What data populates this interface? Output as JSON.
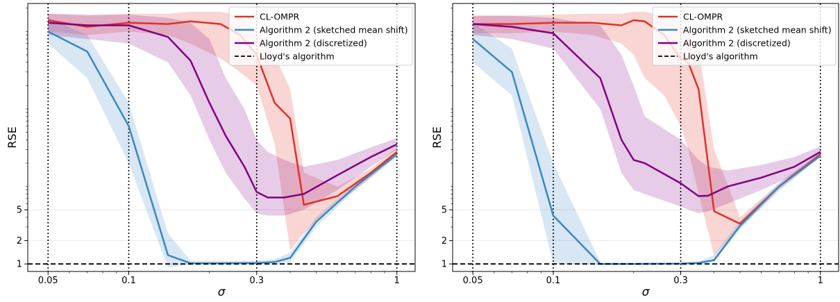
{
  "chart_data": [
    {
      "type": "line",
      "xlabel": "σ",
      "ylabel": "RSE",
      "xscale": "log",
      "yscale": "log",
      "xlim": [
        0.042,
        1.17
      ],
      "ylim": [
        0.8,
        2300
      ],
      "xticks": [
        {
          "v": 0.05,
          "label": "0.05"
        },
        {
          "v": 0.1,
          "label": "0.1"
        },
        {
          "v": 0.3,
          "label": "0.3"
        },
        {
          "v": 1,
          "label": "1"
        }
      ],
      "yticks": [
        {
          "v": 1,
          "label": "1"
        },
        {
          "v": 2,
          "label": "2"
        },
        {
          "v": 5,
          "label": "5"
        }
      ],
      "vlines": [
        0.05,
        0.1,
        0.3,
        1
      ],
      "hline": 1,
      "grid": "y-major dotted",
      "legend_position": "top-right",
      "legend": [
        "CL-OMPR",
        "Algorithm 2 (sketched mean shift)",
        "Algorithm 2 (discretized)",
        "Lloyd's algorithm"
      ],
      "series": [
        {
          "name": "CL-OMPR",
          "color": "#e03127",
          "x": [
            0.05,
            0.07,
            0.1,
            0.14,
            0.17,
            0.22,
            0.26,
            0.3,
            0.35,
            0.4,
            0.45,
            0.6,
            0.8,
            1.0
          ],
          "y": [
            1400,
            1150,
            1300,
            1250,
            1350,
            1250,
            900,
            500,
            120,
            75,
            5.8,
            7.5,
            15,
            28
          ],
          "lo": [
            1000,
            900,
            1000,
            900,
            700,
            450,
            300,
            200,
            35,
            1.5,
            2.5,
            6,
            13,
            25
          ],
          "hi": [
            1700,
            1600,
            1700,
            1700,
            1800,
            1800,
            1600,
            1000,
            500,
            180,
            15,
            10,
            17,
            32
          ]
        },
        {
          "name": "Algorithm 2 (sketched mean shift)",
          "color": "#3a86c4",
          "x": [
            0.05,
            0.07,
            0.1,
            0.14,
            0.17,
            0.22,
            0.3,
            0.35,
            0.4,
            0.5,
            0.7,
            1.0
          ],
          "y": [
            1000,
            550,
            60,
            1.3,
            1.02,
            1.02,
            1.03,
            1.06,
            1.2,
            3.5,
            10,
            26
          ],
          "lo": [
            700,
            250,
            20,
            0.9,
            0.98,
            0.98,
            0.99,
            1.0,
            1.05,
            3.0,
            9,
            24
          ],
          "hi": [
            1500,
            900,
            120,
            2.5,
            1.1,
            1.1,
            1.1,
            1.15,
            1.4,
            4.0,
            11,
            28
          ]
        },
        {
          "name": "Algorithm 2 (discretized)",
          "color": "#800080",
          "x": [
            0.05,
            0.07,
            0.1,
            0.14,
            0.17,
            0.2,
            0.23,
            0.27,
            0.3,
            0.33,
            0.38,
            0.45,
            0.6,
            0.8,
            1.0
          ],
          "y": [
            1300,
            1200,
            1200,
            850,
            420,
            120,
            45,
            18,
            8.5,
            7.2,
            7.2,
            8,
            14,
            24,
            35
          ],
          "lo": [
            900,
            800,
            700,
            400,
            150,
            40,
            15,
            7,
            4.5,
            4.2,
            4.2,
            5,
            9,
            18,
            30
          ],
          "hi": [
            1700,
            1650,
            1650,
            1500,
            1300,
            800,
            250,
            100,
            40,
            28,
            22,
            18,
            22,
            32,
            42
          ]
        },
        {
          "name": "Lloyd's algorithm",
          "color": "#000000",
          "dashed": true,
          "x": [
            0.042,
            1.17
          ],
          "y": [
            1,
            1
          ]
        }
      ]
    },
    {
      "type": "line",
      "xlabel": "σ",
      "ylabel": "RSE",
      "xscale": "log",
      "yscale": "log",
      "xlim": [
        0.042,
        1.17
      ],
      "ylim": [
        0.8,
        2300
      ],
      "xticks": [
        {
          "v": 0.05,
          "label": "0.05"
        },
        {
          "v": 0.1,
          "label": "0.1"
        },
        {
          "v": 0.3,
          "label": "0.3"
        },
        {
          "v": 1,
          "label": "1"
        }
      ],
      "yticks": [
        {
          "v": 1,
          "label": "1"
        },
        {
          "v": 2,
          "label": "2"
        },
        {
          "v": 5,
          "label": "5"
        }
      ],
      "vlines": [
        0.05,
        0.1,
        0.3,
        1
      ],
      "hline": 1,
      "grid": "y-major dotted",
      "legend_position": "top-right",
      "legend": [
        "CL-OMPR",
        "Algorithm 2 (sketched mean shift)",
        "Algorithm 2 (discretized)",
        "Lloyd's algorithm"
      ],
      "series": [
        {
          "name": "CL-OMPR",
          "color": "#e03127",
          "x": [
            0.05,
            0.07,
            0.1,
            0.14,
            0.18,
            0.2,
            0.22,
            0.26,
            0.3,
            0.32,
            0.35,
            0.4,
            0.5,
            0.7,
            1.0
          ],
          "y": [
            1250,
            1250,
            1300,
            1300,
            1200,
            1400,
            1350,
            900,
            450,
            400,
            180,
            4.8,
            3.3,
            10,
            26
          ],
          "lo": [
            950,
            950,
            1000,
            900,
            700,
            500,
            250,
            150,
            60,
            30,
            8,
            1.3,
            2.9,
            9,
            24
          ],
          "hi": [
            1600,
            1600,
            1650,
            1700,
            1700,
            1800,
            1800,
            1600,
            1300,
            1000,
            600,
            30,
            4.0,
            11,
            28
          ]
        },
        {
          "name": "Algorithm 2 (sketched mean shift)",
          "color": "#3a86c4",
          "x": [
            0.05,
            0.07,
            0.1,
            0.15,
            0.2,
            0.3,
            0.35,
            0.4,
            0.5,
            0.7,
            1.0
          ],
          "y": [
            800,
            300,
            4.2,
            1.0,
            1.0,
            1.01,
            1.03,
            1.12,
            3.1,
            10,
            25
          ],
          "lo": [
            400,
            150,
            1.0,
            0.98,
            0.98,
            0.99,
            1.0,
            1.05,
            2.8,
            9,
            24
          ],
          "hi": [
            1300,
            600,
            20,
            1.05,
            1.05,
            1.05,
            1.08,
            1.3,
            3.6,
            11,
            27
          ]
        },
        {
          "name": "Algorithm 2 (discretized)",
          "color": "#800080",
          "x": [
            0.05,
            0.07,
            0.1,
            0.15,
            0.18,
            0.2,
            0.22,
            0.3,
            0.35,
            0.38,
            0.45,
            0.6,
            0.8,
            1.0
          ],
          "y": [
            1250,
            1150,
            950,
            250,
            40,
            22,
            20,
            11,
            7.5,
            7.6,
            10,
            13,
            18,
            28
          ],
          "lo": [
            900,
            800,
            600,
            100,
            15,
            9,
            8,
            5.5,
            4.5,
            4.8,
            6,
            9,
            14,
            24
          ],
          "hi": [
            1600,
            1600,
            1500,
            1200,
            500,
            200,
            80,
            40,
            22,
            18,
            16,
            19,
            24,
            33
          ]
        },
        {
          "name": "Lloyd's algorithm",
          "color": "#000000",
          "dashed": true,
          "x": [
            0.042,
            1.17
          ],
          "y": [
            1,
            1
          ]
        }
      ]
    }
  ]
}
